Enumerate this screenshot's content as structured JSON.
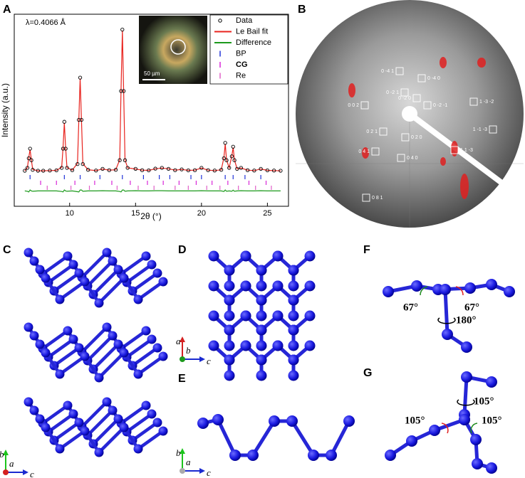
{
  "panel_labels": [
    "A",
    "B",
    "C",
    "D",
    "E",
    "F",
    "G"
  ],
  "chart_data": {
    "type": "line",
    "annotation": "λ=0.4066 Å",
    "inset_scale_bar": "50 µm",
    "xlabel": "2θ (°)",
    "ylabel": "Intensity (a.u.)",
    "xlim": [
      5.8,
      26.6
    ],
    "xticks": [
      10,
      15,
      20,
      25
    ],
    "ylim": [
      0,
      100
    ],
    "legend": "upper right",
    "x": [
      6.6,
      6.8,
      6.9,
      7.0,
      7.1,
      7.2,
      7.6,
      8.0,
      8.5,
      9.0,
      9.4,
      9.5,
      9.6,
      9.7,
      9.8,
      10.2,
      10.6,
      10.7,
      10.8,
      10.9,
      11.0,
      11.4,
      12.0,
      12.5,
      13.0,
      13.5,
      13.8,
      13.9,
      14.0,
      14.1,
      14.2,
      14.4,
      15.0,
      15.5,
      16.0,
      16.5,
      17.0,
      17.5,
      18.0,
      18.5,
      19.0,
      19.5,
      20.0,
      20.5,
      21.0,
      21.5,
      21.7,
      21.8,
      21.9,
      22.1,
      22.3,
      22.4,
      22.5,
      22.7,
      23.0,
      23.5,
      24.0,
      24.5,
      25.0,
      25.5,
      26.0
    ],
    "series": [
      {
        "name": "Data",
        "color": "#000000",
        "style": "points",
        "values": [
          18.5,
          20,
          25,
          30,
          24,
          19,
          18.5,
          18.5,
          18.6,
          18.7,
          20,
          30,
          44,
          30,
          20,
          18.8,
          22,
          45,
          67,
          45,
          22,
          19,
          18.6,
          19.5,
          18.8,
          19,
          24,
          60,
          92,
          60,
          24,
          20,
          19.5,
          18.8,
          18.7,
          19.6,
          20,
          19.5,
          18.8,
          19.2,
          18.7,
          18.8,
          20,
          18.8,
          18.6,
          19,
          25,
          33,
          24,
          20,
          26,
          31,
          24,
          19.5,
          20,
          18.8,
          18.6,
          19.5,
          18.7,
          18.6,
          18.5
        ]
      },
      {
        "name": "Le Bail fit",
        "color": "#e8231e",
        "style": "line",
        "values": [
          18.5,
          20.2,
          25.5,
          29.5,
          24,
          19.2,
          18.5,
          18.5,
          18.6,
          18.7,
          20.3,
          30.5,
          43.5,
          30,
          20.2,
          18.8,
          22.4,
          45.5,
          66.5,
          44.5,
          22.2,
          19,
          18.6,
          19.4,
          18.8,
          19,
          24.3,
          60.5,
          91.5,
          59.5,
          24.2,
          20,
          19.4,
          18.8,
          18.7,
          19.5,
          19.9,
          19.5,
          18.8,
          19.2,
          18.7,
          18.8,
          19.9,
          18.8,
          18.6,
          19,
          25.3,
          32.5,
          24.2,
          20,
          26.2,
          30.6,
          24.2,
          19.5,
          19.9,
          18.8,
          18.6,
          19.4,
          18.7,
          18.6,
          18.5
        ]
      },
      {
        "name": "Difference",
        "color": "#1c9a1c",
        "style": "line",
        "values": [
          8,
          7.8,
          7.5,
          8.5,
          8,
          7.8,
          8,
          8,
          8,
          8,
          7.7,
          7.5,
          8.5,
          8,
          7.8,
          8,
          7.6,
          7.5,
          8.5,
          8.5,
          7.8,
          8,
          8,
          8.1,
          8,
          8,
          7.7,
          7.5,
          8.5,
          8.5,
          7.8,
          8,
          8.1,
          8,
          8,
          8.1,
          8.1,
          8,
          8,
          8,
          8,
          8,
          8.1,
          8,
          8,
          8,
          7.7,
          8.5,
          7.8,
          8,
          7.8,
          8.4,
          7.8,
          8,
          8.1,
          8,
          8,
          8.1,
          8,
          8,
          8
        ]
      },
      {
        "name": "BP",
        "color": "#2234d8",
        "style": "ticks",
        "x": [
          7.0,
          9.6,
          10.8,
          12.3,
          14.0,
          15.6,
          16.8,
          17.6,
          19.2,
          20.0,
          21.8,
          22.4,
          23.3,
          24.5
        ]
      },
      {
        "name": "CG",
        "color": "#d826d8",
        "style": "ticks",
        "x": [
          7.8,
          9.0,
          10.4,
          11.9,
          13.2,
          14.6,
          15.9,
          17.1,
          18.3,
          19.6,
          20.8,
          22.0,
          23.6,
          24.9
        ]
      },
      {
        "name": "Re",
        "color": "#e060c8",
        "style": "ticks",
        "x": [
          8.3,
          10.1,
          11.5,
          13.6,
          15.2,
          16.4,
          18.0,
          19.0,
          20.4,
          21.4,
          22.8,
          24.1,
          25.3
        ]
      }
    ]
  },
  "diffraction": {
    "reflections": [
      "0 -4 1",
      "0 -4 0",
      "0 -2 1",
      "0 -2 0",
      "0 0 2",
      "0 -2 -1",
      "1 -3 -2",
      "0 2 1",
      "0 2 0",
      "1 -1 -3",
      "0 4 1",
      "0 4 0",
      "1 1 -3",
      "0 8 1"
    ]
  },
  "structures": {
    "axes_C": [
      "b",
      "a",
      "c"
    ],
    "axes_D": [
      "a",
      "b",
      "c"
    ],
    "axes_E": [
      "b",
      "a",
      "c"
    ],
    "angles_F": [
      "67°",
      "67°",
      "180°"
    ],
    "angles_G": [
      "105°",
      "105°",
      "105°"
    ]
  }
}
